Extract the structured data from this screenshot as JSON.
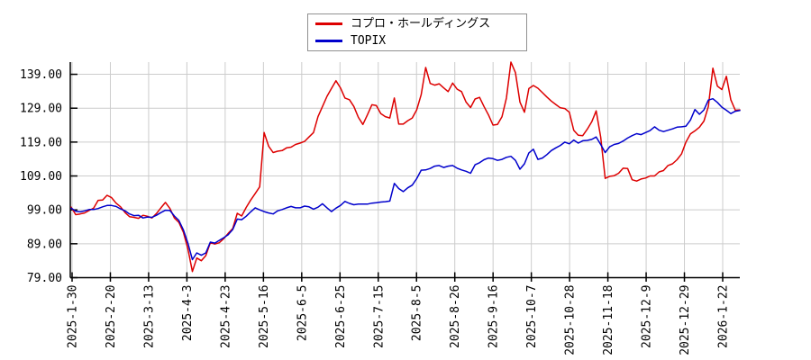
{
  "chart_data": {
    "type": "line",
    "title": "",
    "xlabel": "",
    "ylabel": "",
    "grid": true,
    "legend_position": "top-center",
    "background_color": "#ffffff",
    "grid_color": "#cccccc",
    "axis_color": "#000000",
    "ylim": [
      79,
      142.6
    ],
    "yticks": [
      139,
      129,
      119,
      109,
      99,
      89,
      79
    ],
    "ytick_labels": [
      "139.00",
      "129.00",
      "119.00",
      "109.00",
      "99.00",
      "89.00",
      "79.00"
    ],
    "x_tick_labels": [
      "2025-1-30",
      "2025-2-20",
      "2025-3-13",
      "2025-4-3",
      "2025-4-23",
      "2025-5-16",
      "2025-6-5",
      "2025-6-25",
      "2025-7-15",
      "2025-8-5",
      "2025-8-26",
      "2025-9-16",
      "2025-10-7",
      "2025-10-28",
      "2025-11-18",
      "2025-12-9",
      "2025-12-29",
      "2026-1-22"
    ],
    "series": [
      {
        "name": "コプロ・ホールディングス",
        "color": "#dd0000",
        "values": [
          99.8,
          97.6,
          97.8,
          98.1,
          98.8,
          99.5,
          101.8,
          101.9,
          103.3,
          102.6,
          101.0,
          99.9,
          98.2,
          97.0,
          96.8,
          96.5,
          97.4,
          97.1,
          96.6,
          97.9,
          99.6,
          101.2,
          99.4,
          96.6,
          95.3,
          92.4,
          87.5,
          80.8,
          84.8,
          84.0,
          85.5,
          89.3,
          88.9,
          89.3,
          90.5,
          92.1,
          93.5,
          98.0,
          97.2,
          99.7,
          101.9,
          103.8,
          105.8,
          121.8,
          117.8,
          115.9,
          116.3,
          116.5,
          117.3,
          117.5,
          118.3,
          118.7,
          119.2,
          120.5,
          121.8,
          126.5,
          129.5,
          132.5,
          134.8,
          137.1,
          135.0,
          132.0,
          131.5,
          129.5,
          126.3,
          124.2,
          127.0,
          130.0,
          129.8,
          127.4,
          126.5,
          126.1,
          132.0,
          124.3,
          124.3,
          125.3,
          126.1,
          128.5,
          133.0,
          141.0,
          136.3,
          135.8,
          136.2,
          135.0,
          133.9,
          136.4,
          134.6,
          133.9,
          130.8,
          129.2,
          131.7,
          132.2,
          129.5,
          127.0,
          124.0,
          124.2,
          126.5,
          132.0,
          142.6,
          139.5,
          130.8,
          127.8,
          134.8,
          135.7,
          134.9,
          133.6,
          132.3,
          131.1,
          130.1,
          129.1,
          128.9,
          127.8,
          122.5,
          121.0,
          120.9,
          122.8,
          125.0,
          128.2,
          120.5,
          108.3,
          108.9,
          109.1,
          109.8,
          111.3,
          111.2,
          107.9,
          107.5,
          108.1,
          108.4,
          109.0,
          109.0,
          110.2,
          110.6,
          112.1,
          112.6,
          113.8,
          115.5,
          119.0,
          121.4,
          122.3,
          123.4,
          125.2,
          129.5,
          140.8,
          135.5,
          134.5,
          138.4,
          131.5,
          128.4,
          128.5
        ]
      },
      {
        "name": "TOPIX",
        "color": "#0000cc",
        "values": [
          99.5,
          98.6,
          98.4,
          98.7,
          99.1,
          99.1,
          99.4,
          99.9,
          100.3,
          100.3,
          100.0,
          99.3,
          98.7,
          97.8,
          97.3,
          97.4,
          96.6,
          96.9,
          96.8,
          97.4,
          98.2,
          98.9,
          98.8,
          97.2,
          95.9,
          93.1,
          89.2,
          84.3,
          86.3,
          85.6,
          86.3,
          89.5,
          89.2,
          90.0,
          90.8,
          91.7,
          93.2,
          96.3,
          96.1,
          97.1,
          98.4,
          99.6,
          99.0,
          98.5,
          98.1,
          97.8,
          98.7,
          99.1,
          99.6,
          100.0,
          99.6,
          99.6,
          100.1,
          99.9,
          99.2,
          99.8,
          100.8,
          99.6,
          98.5,
          99.5,
          100.3,
          101.5,
          100.9,
          100.5,
          100.7,
          100.7,
          100.7,
          101.0,
          101.1,
          101.3,
          101.4,
          101.6,
          106.8,
          105.3,
          104.4,
          105.5,
          106.3,
          108.2,
          110.7,
          110.8,
          111.2,
          111.9,
          112.1,
          111.5,
          111.9,
          112.1,
          111.3,
          110.8,
          110.4,
          109.8,
          112.3,
          112.9,
          113.8,
          114.3,
          114.1,
          113.6,
          113.9,
          114.5,
          114.8,
          113.6,
          111.0,
          112.6,
          115.8,
          116.9,
          113.9,
          114.3,
          115.3,
          116.5,
          117.3,
          118.0,
          119.0,
          118.5,
          119.6,
          118.7,
          119.4,
          119.5,
          119.8,
          120.5,
          118.3,
          115.9,
          117.6,
          118.3,
          118.6,
          119.3,
          120.2,
          120.9,
          121.5,
          121.2,
          121.8,
          122.4,
          123.5,
          122.5,
          122.1,
          122.5,
          122.9,
          123.4,
          123.5,
          123.7,
          125.5,
          128.6,
          127.2,
          128.5,
          131.4,
          131.8,
          130.7,
          129.3,
          128.4,
          127.4,
          128.1,
          128.3
        ]
      }
    ]
  },
  "legend": {
    "items": [
      {
        "label": "コプロ・ホールディングス",
        "color": "#dd0000"
      },
      {
        "label": "TOPIX",
        "color": "#0000cc"
      }
    ]
  }
}
